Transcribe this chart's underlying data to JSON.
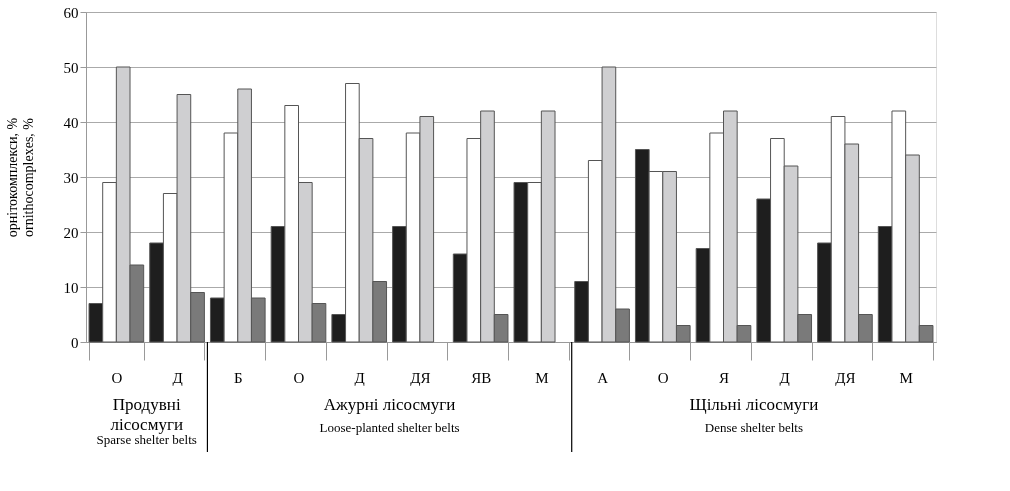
{
  "chart_data": {
    "type": "bar",
    "ylabel": "орнітокомплекси, %\nornithocomplexes, %",
    "categories": [
      "О",
      "Д",
      "Б",
      "О",
      "Д",
      "ДЯ",
      "ЯВ",
      "М",
      "А",
      "О",
      "Я",
      "Д",
      "ДЯ",
      "М"
    ],
    "series": [
      {
        "color": "#1e1e1e",
        "values": [
          7,
          18,
          8,
          21,
          5,
          21,
          16,
          29,
          11,
          35,
          17,
          26,
          18,
          21
        ]
      },
      {
        "color": "#ffffff",
        "values": [
          29,
          27,
          38,
          43,
          47,
          38,
          37,
          29,
          33,
          31,
          38,
          37,
          41,
          42
        ]
      },
      {
        "color": "#cfcfd1",
        "values": [
          50,
          45,
          46,
          29,
          37,
          41,
          42,
          42,
          50,
          31,
          42,
          32,
          36,
          34
        ]
      },
      {
        "color": "#7a7a7a",
        "values": [
          14,
          9,
          8,
          7,
          11,
          null,
          5,
          null,
          6,
          3,
          3,
          5,
          5,
          3
        ]
      }
    ],
    "ylim": [
      0,
      60
    ],
    "yticks": [
      0,
      10,
      20,
      30,
      40,
      50,
      60
    ],
    "grid": "y",
    "legend": false,
    "annotations": [
      "Продувні\nлісосмуги",
      "Sparse shelter belts",
      "Ажурні лісосмуги",
      "Loose-planted shelter belts",
      "Щільні лісосмуги",
      "Dense shelter belts"
    ]
  }
}
